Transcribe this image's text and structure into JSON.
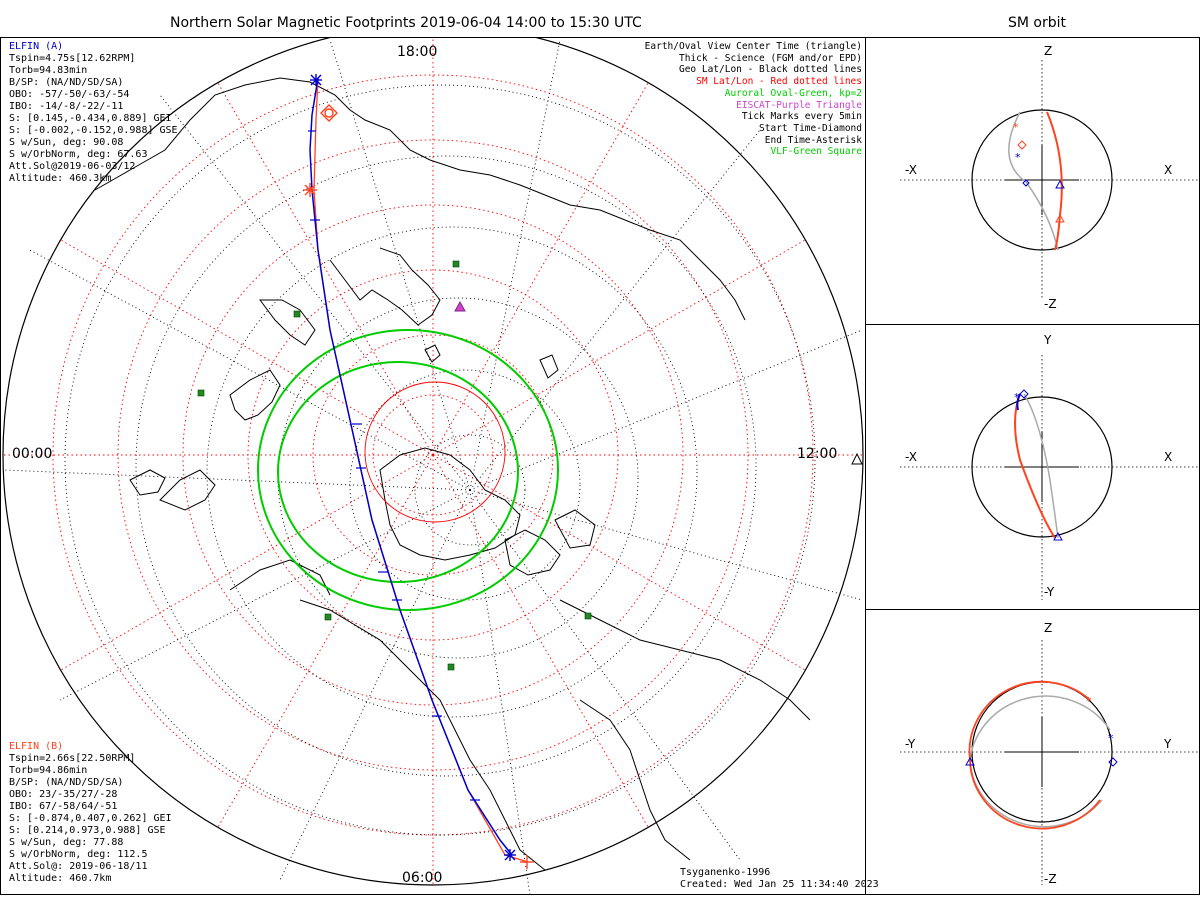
{
  "title": "Northern Solar Magnetic Footprints 2019-06-04 14:00 to 15:30 UTC",
  "orbit_title": "SM orbit",
  "colors": {
    "elfin_a": "#0000cc",
    "elfin_b": "#ff4422",
    "red": "#ff0000",
    "green": "#00cc00",
    "purple": "#cc44cc",
    "grey": "#a0a0a0",
    "black": "#000000"
  },
  "map": {
    "time_labels": {
      "top": "18:00",
      "left": "00:00",
      "right": "12:00",
      "bottom": "06:00"
    },
    "icon": "polar-projection"
  },
  "elfin_a": {
    "name": "ELFIN (A)",
    "lines": [
      "Tspin=4.75s[12.62RPM]",
      "Torb=94.83min",
      "B/SP: (NA/ND/SD/SA)",
      "OBO: -57/-50/-63/-54",
      "IBO: -14/-8/-22/-11",
      "S: [0.145,-0.434,0.889] GEI",
      "S: [-0.002,-0.152,0.988] GSE",
      "S w/Sun, deg: 90.08",
      "S w/OrbNorm, deg: 67.63",
      "Att.Sol@2019-06-03/12",
      "Altitude: 460.3km"
    ]
  },
  "elfin_b": {
    "name": "ELFIN (B)",
    "lines": [
      "Tspin=2.66s[22.50RPM]",
      "Torb=94.86min",
      "B/SP: (NA/ND/SD/SA)",
      "OBO: 23/-35/27/-28",
      "IBO: 67/-58/64/-51",
      "S: [-0.874,0.407,0.262] GEI",
      "S: [0.214,0.973,0.988] GSE",
      "S w/Sun, deg: 77.88",
      "S w/OrbNorm, deg: 112.5",
      "Att.Sol@: 2019-06-18/11",
      "Altitude: 460.7km"
    ]
  },
  "legend": [
    {
      "text": "Earth/Oval View Center Time (triangle)",
      "color": "#000000"
    },
    {
      "text": "Thick - Science (FGM and/or EPD)",
      "color": "#000000"
    },
    {
      "text": "Geo Lat/Lon - Black dotted lines",
      "color": "#000000"
    },
    {
      "text": "SM Lat/Lon - Red dotted lines",
      "color": "#ff0000"
    },
    {
      "text": "Auroral Oval-Green, kp=2",
      "color": "#00cc00"
    },
    {
      "text": "EISCAT-Purple Triangle",
      "color": "#cc44cc"
    },
    {
      "text": "Tick Marks every 5min",
      "color": "#000000"
    },
    {
      "text": "Start Time-Diamond",
      "color": "#000000"
    },
    {
      "text": "End Time-Asterisk",
      "color": "#000000"
    },
    {
      "text": "VLF-Green Square",
      "color": "#00cc00"
    }
  ],
  "footer": {
    "model": "Tsyganenko-1996",
    "created": "Created: Wed Jan 25 11:34:40 2023"
  },
  "orbit_panels": [
    {
      "id": "xz",
      "left": "-X",
      "right": "X",
      "top": "Z",
      "bottom": "-Z"
    },
    {
      "id": "xy",
      "left": "-X",
      "right": "X",
      "top": "Y",
      "bottom": "-Y"
    },
    {
      "id": "yz",
      "left": "-Y",
      "right": "Y",
      "top": "Z",
      "bottom": "-Z"
    }
  ]
}
